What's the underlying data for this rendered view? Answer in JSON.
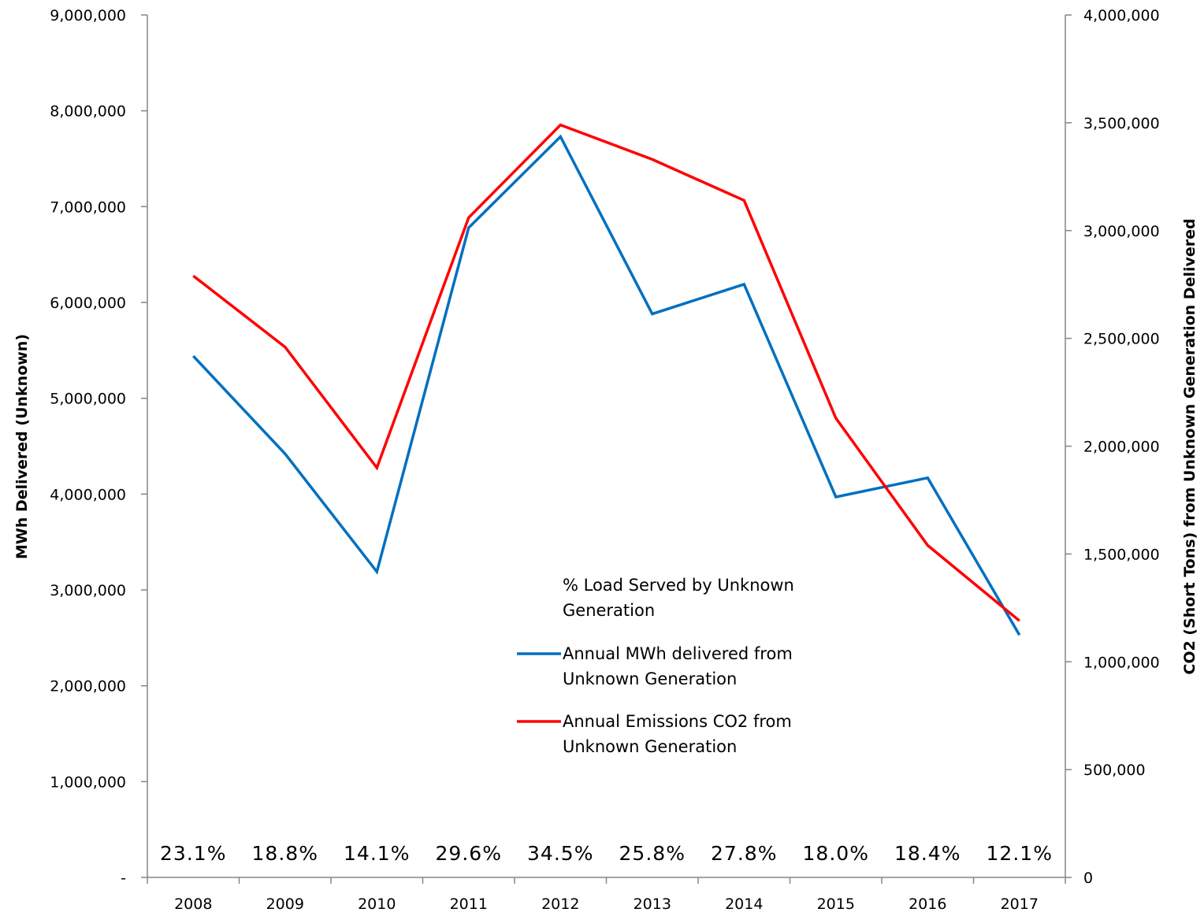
{
  "chart_data": {
    "type": "line",
    "categories": [
      "2008",
      "2009",
      "2010",
      "2011",
      "2012",
      "2013",
      "2014",
      "2015",
      "2016",
      "2017"
    ],
    "percent_labels": [
      "23.1%",
      "18.8%",
      "14.1%",
      "29.6%",
      "34.5%",
      "25.8%",
      "27.8%",
      "18.0%",
      "18.4%",
      "12.1%"
    ],
    "series": [
      {
        "name": "Annual MWh delivered from Unknown Generation",
        "axis": "left",
        "color": "#0070c0",
        "values": [
          5440000,
          4420000,
          3190000,
          6780000,
          7730000,
          5880000,
          6190000,
          3970000,
          4170000,
          2530000
        ]
      },
      {
        "name": "Annual Emissions CO2 from Unknown Generation",
        "axis": "right",
        "color": "#ff0000",
        "values": [
          2790000,
          2460000,
          1900000,
          3060000,
          3490000,
          3330000,
          3140000,
          2130000,
          1540000,
          1190000
        ]
      }
    ],
    "legend_title": "% Load Served by Unknown Generation",
    "legend_placement": "center",
    "ylabel_left": "MWh Delivered (Unknown)",
    "ylabel_right": "CO2 (Short Tons) from Unknown Generation Delivered",
    "ylim_left": [
      0,
      9000000
    ],
    "ylim_right": [
      0,
      4000000
    ],
    "yticks_left": [
      "-",
      "1,000,000",
      "2,000,000",
      "3,000,000",
      "4,000,000",
      "5,000,000",
      "6,000,000",
      "7,000,000",
      "8,000,000",
      "9,000,000"
    ],
    "yticks_right": [
      "0",
      "500,000",
      "1,000,000",
      "1,500,000",
      "2,000,000",
      "2,500,000",
      "3,000,000",
      "3,500,000",
      "4,000,000"
    ],
    "grid": false
  }
}
